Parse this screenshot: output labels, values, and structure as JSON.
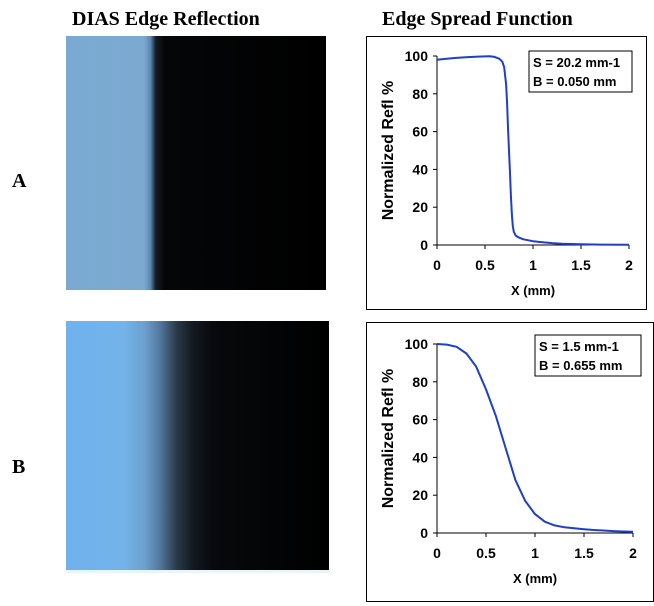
{
  "titles": {
    "left": "DIAS Edge Reflection",
    "right": "Edge Spread Function"
  },
  "rows": [
    {
      "label": "A"
    },
    {
      "label": "B"
    }
  ],
  "colors": {
    "curve": "#1f3fc4"
  },
  "chart_data": [
    {
      "type": "line",
      "title": "",
      "xlabel": "X (mm)",
      "ylabel": "Normalized Refl %",
      "xlim": [
        0,
        2
      ],
      "ylim": [
        0,
        100
      ],
      "xticks": [
        0,
        0.5,
        1,
        1.5,
        2
      ],
      "xtick_labels": [
        "0",
        "0.5",
        "1",
        "1.5",
        "2"
      ],
      "yticks": [
        0,
        20,
        40,
        60,
        80,
        100
      ],
      "ytick_labels": [
        "0",
        "20",
        "40",
        "60",
        "80",
        "100"
      ],
      "grid": false,
      "annotation": [
        "S = 20.2 mm-1",
        "B = 0.050 mm"
      ],
      "series": [
        {
          "x": [
            0,
            0.1,
            0.2,
            0.3,
            0.4,
            0.5,
            0.55,
            0.6,
            0.65,
            0.68,
            0.7,
            0.72,
            0.73,
            0.74,
            0.75,
            0.76,
            0.77,
            0.78,
            0.79,
            0.8,
            0.82,
            0.85,
            0.9,
            1.0,
            1.1,
            1.2,
            1.3,
            1.5,
            1.7,
            2.0
          ],
          "y": [
            98,
            98.5,
            99,
            99.3,
            99.6,
            99.8,
            99.9,
            99.5,
            98.5,
            97,
            94,
            85,
            75,
            62,
            50,
            38,
            26,
            16,
            10,
            7,
            5,
            4,
            3,
            2,
            1.5,
            1,
            0.7,
            0.4,
            0.2,
            0.1
          ]
        }
      ]
    },
    {
      "type": "line",
      "title": "",
      "xlabel": "X (mm)",
      "ylabel": "Normalized Refl %",
      "xlim": [
        0,
        2
      ],
      "ylim": [
        0,
        100
      ],
      "xticks": [
        0,
        0.5,
        1,
        1.5,
        2
      ],
      "xtick_labels": [
        "0",
        "0.5",
        "1",
        "1.5",
        "2"
      ],
      "yticks": [
        0,
        20,
        40,
        60,
        80,
        100
      ],
      "ytick_labels": [
        "0",
        "20",
        "40",
        "60",
        "80",
        "100"
      ],
      "grid": false,
      "annotation": [
        "S = 1.5 mm-1",
        "B = 0.655 mm"
      ],
      "series": [
        {
          "x": [
            0,
            0.1,
            0.2,
            0.3,
            0.4,
            0.5,
            0.6,
            0.7,
            0.8,
            0.9,
            1.0,
            1.1,
            1.2,
            1.3,
            1.4,
            1.5,
            1.6,
            1.7,
            1.8,
            1.9,
            2.0
          ],
          "y": [
            100,
            99.7,
            98.5,
            95,
            88,
            76,
            62,
            45,
            28,
            17,
            10,
            6,
            4,
            3,
            2.5,
            2,
            1.6,
            1.3,
            1,
            0.8,
            0.7
          ]
        }
      ]
    }
  ]
}
